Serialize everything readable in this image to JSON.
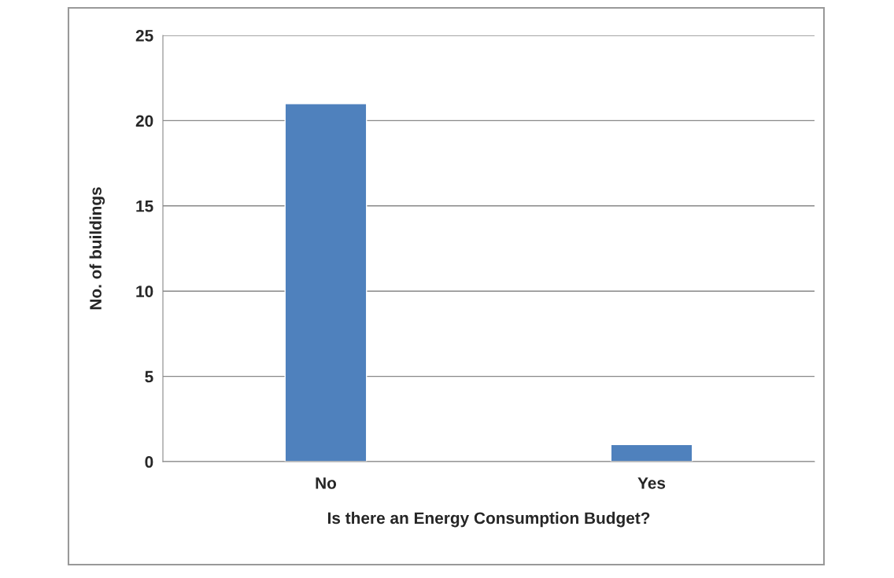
{
  "chart_data": {
    "type": "bar",
    "xlabel": "Is there an Energy Consumption Budget?",
    "ylabel": "No. of buildings",
    "categories": [
      "No",
      "Yes"
    ],
    "values": [
      21,
      1
    ],
    "color": "#4f81bd",
    "ylim": [
      0,
      25
    ],
    "yticks": [
      0,
      5,
      10,
      15,
      20,
      25
    ],
    "grid": "y"
  }
}
